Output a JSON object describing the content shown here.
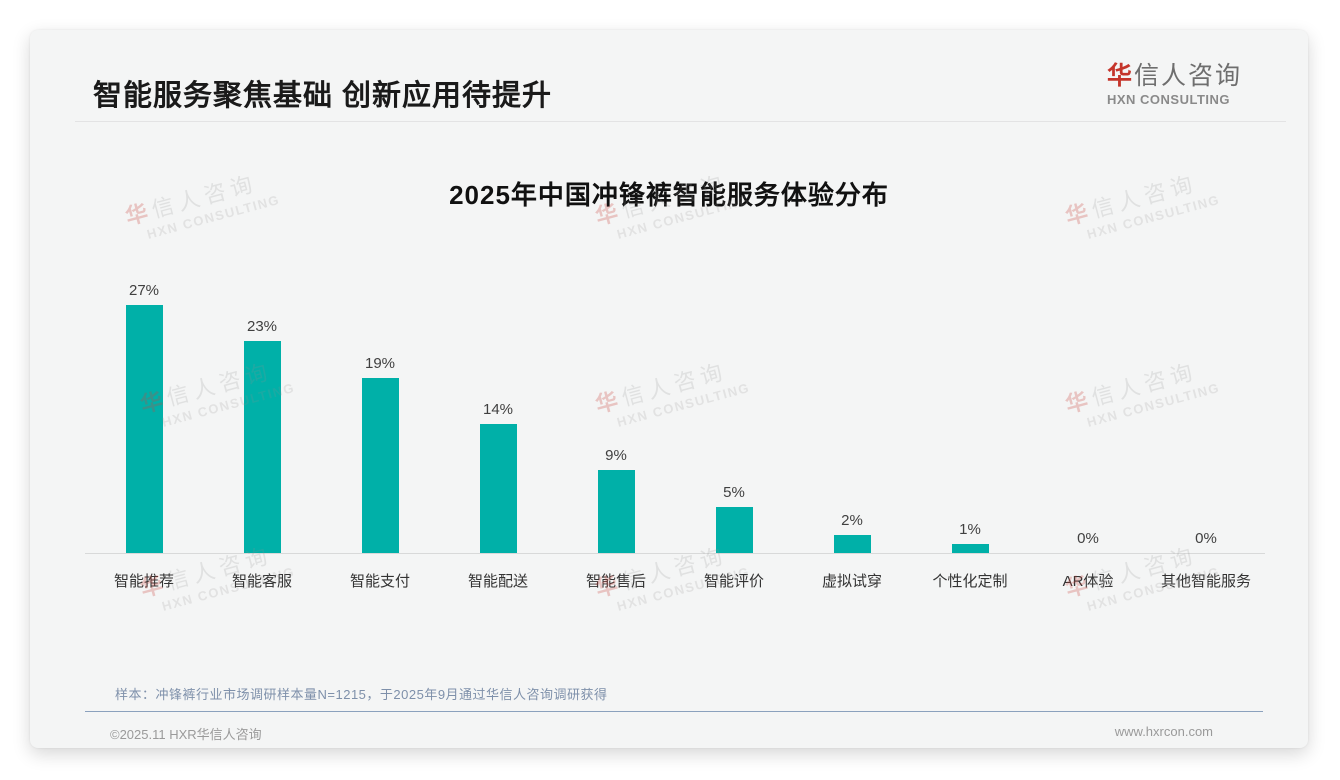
{
  "page": {
    "header": {
      "title": "智能服务聚焦基础 创新应用待提升"
    },
    "logo": {
      "cn_first": "华",
      "cn_rest": "信人咨询",
      "en": "HXN CONSULTING"
    },
    "watermark": {
      "cn_first": "华",
      "cn_rest": "信人咨询",
      "en": "HXN CONSULTING"
    },
    "note": "样本：冲锋裤行业市场调研样本量N=1215，于2025年9月通过华信人咨询调研获得",
    "footer": {
      "copyright": "©2025.11 HXR华信人咨询",
      "website": "www.hxrcon.com"
    }
  },
  "chart_data": {
    "type": "bar",
    "title": "2025年中国冲锋裤智能服务体验分布",
    "categories": [
      "智能推荐",
      "智能客服",
      "智能支付",
      "智能配送",
      "智能售后",
      "智能评价",
      "虚拟试穿",
      "个性化定制",
      "AR体验",
      "其他智能服务"
    ],
    "values": [
      27,
      23,
      19,
      14,
      9,
      5,
      2,
      1,
      0,
      0
    ],
    "value_labels": [
      "27%",
      "23%",
      "19%",
      "14%",
      "9%",
      "5%",
      "2%",
      "1%",
      "0%",
      "0%"
    ],
    "unit": "%",
    "bar_color": "#00b0a8",
    "ylim": [
      0,
      30
    ],
    "grid": false,
    "legend": false,
    "xlabel": "",
    "ylabel": ""
  }
}
